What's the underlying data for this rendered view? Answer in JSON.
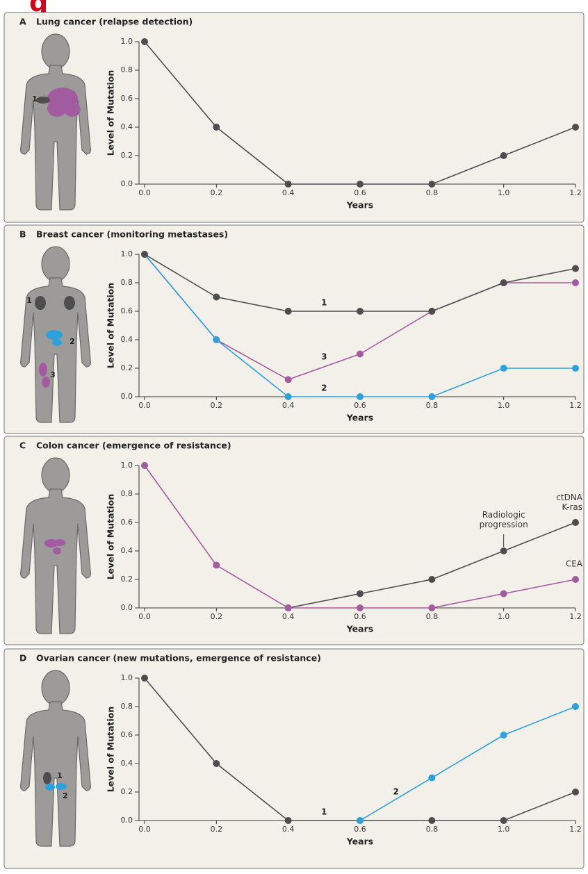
{
  "header": {
    "text": "g"
  },
  "chart_data": [
    {
      "type": "line",
      "panel": "A",
      "title": "Lung cancer (relapse detection)",
      "xlabel": "Years",
      "ylabel": "Level of Mutation",
      "x": [
        0,
        0.2,
        0.4,
        0.6,
        0.8,
        1.0,
        1.2
      ],
      "xlim": [
        0,
        1.2
      ],
      "xticks": [
        {
          "value": 0,
          "label": "0.0"
        },
        0.2,
        0.4,
        0.6,
        0.8,
        {
          "value": 1,
          "label": "1.0"
        },
        1.2
      ],
      "ylim": [
        0,
        1
      ],
      "yticks": [
        {
          "value": 0,
          "label": "0.0"
        },
        0.2,
        0.4,
        0.6,
        0.8,
        {
          "value": 1,
          "label": "1.0"
        }
      ],
      "series": [
        {
          "color": "#4d4d4f",
          "values": [
            1,
            0.4,
            0,
            0,
            0,
            0.2,
            0.4
          ]
        }
      ],
      "body_labels": [
        "1"
      ]
    },
    {
      "type": "line",
      "panel": "B",
      "title": "Breast cancer (monitoring metastases)",
      "xlabel": "Years",
      "ylabel": "Level of Mutation",
      "x": [
        0,
        0.2,
        0.4,
        0.6,
        0.8,
        1.0,
        1.2
      ],
      "xlim": [
        0,
        1.2
      ],
      "xticks": [
        {
          "value": 0,
          "label": "0.0"
        },
        0.2,
        0.4,
        0.6,
        0.8,
        {
          "value": 1,
          "label": "1.0"
        },
        1.2
      ],
      "ylim": [
        0,
        1
      ],
      "yticks": [
        {
          "value": 0,
          "label": "0.0"
        },
        0.2,
        0.4,
        0.6,
        0.8,
        {
          "value": 1,
          "label": "1.0"
        }
      ],
      "series": [
        {
          "name": "3",
          "color": "#a35ba0",
          "values": [
            1,
            0.4,
            0.12,
            0.3,
            0.6,
            0.8,
            0.8
          ]
        },
        {
          "name": "2",
          "color": "#2fa0dc",
          "values": [
            1,
            0.4,
            0,
            0,
            0,
            0.2,
            0.2
          ]
        },
        {
          "name": "1",
          "color": "#4d4d4f",
          "values": [
            1,
            0.7,
            0.6,
            0.6,
            0.6,
            0.8,
            0.9
          ]
        }
      ],
      "body_labels": [
        "1",
        "2",
        "3"
      ]
    },
    {
      "type": "line",
      "panel": "C",
      "title": "Colon cancer (emergence of resistance)",
      "xlabel": "Years",
      "ylabel": "Level of Mutation",
      "x": [
        0,
        0.2,
        0.4,
        0.6,
        0.8,
        1.0,
        1.2
      ],
      "xlim": [
        0,
        1.2
      ],
      "xticks": [
        {
          "value": 0,
          "label": "0.0"
        },
        0.2,
        0.4,
        0.6,
        0.8,
        {
          "value": 1,
          "label": "1.0"
        },
        1.2
      ],
      "ylim": [
        0,
        1
      ],
      "yticks": [
        {
          "value": 0,
          "label": "0.0"
        },
        0.2,
        0.4,
        0.6,
        0.8,
        {
          "value": 1,
          "label": "1.0"
        }
      ],
      "series": [
        {
          "name": "ctDNA K-ras",
          "color": "#4d4d4f",
          "values": [
            null,
            null,
            0,
            0.1,
            0.2,
            0.4,
            0.6
          ]
        },
        {
          "name": "CEA",
          "color": "#a35ba0",
          "values": [
            1,
            0.3,
            0,
            0,
            0,
            0.1,
            0.2
          ]
        }
      ],
      "annotations": [
        "Radiologic progression"
      ]
    },
    {
      "type": "line",
      "panel": "D",
      "title": "Ovarian cancer (new mutations, emergence of resistance)",
      "xlabel": "Years",
      "ylabel": "Level of Mutation",
      "x": [
        0,
        0.2,
        0.4,
        0.6,
        0.8,
        1.0,
        1.2
      ],
      "xlim": [
        0,
        1.2
      ],
      "xticks": [
        {
          "value": 0,
          "label": "0.0"
        },
        0.2,
        0.4,
        0.6,
        0.8,
        {
          "value": 1,
          "label": "1.0"
        },
        1.2
      ],
      "ylim": [
        0,
        1
      ],
      "yticks": [
        {
          "value": 0,
          "label": "0.0"
        },
        0.2,
        0.4,
        0.6,
        0.8,
        {
          "value": 1,
          "label": "1.0"
        }
      ],
      "series": [
        {
          "name": "1",
          "color": "#4d4d4f",
          "values": [
            1,
            0.4,
            0,
            0,
            0,
            0,
            0.2
          ]
        },
        {
          "name": "2",
          "color": "#2fa0dc",
          "values": [
            null,
            null,
            null,
            0,
            0.3,
            0.6,
            0.8
          ]
        }
      ],
      "body_labels": [
        "1",
        "2"
      ]
    }
  ]
}
